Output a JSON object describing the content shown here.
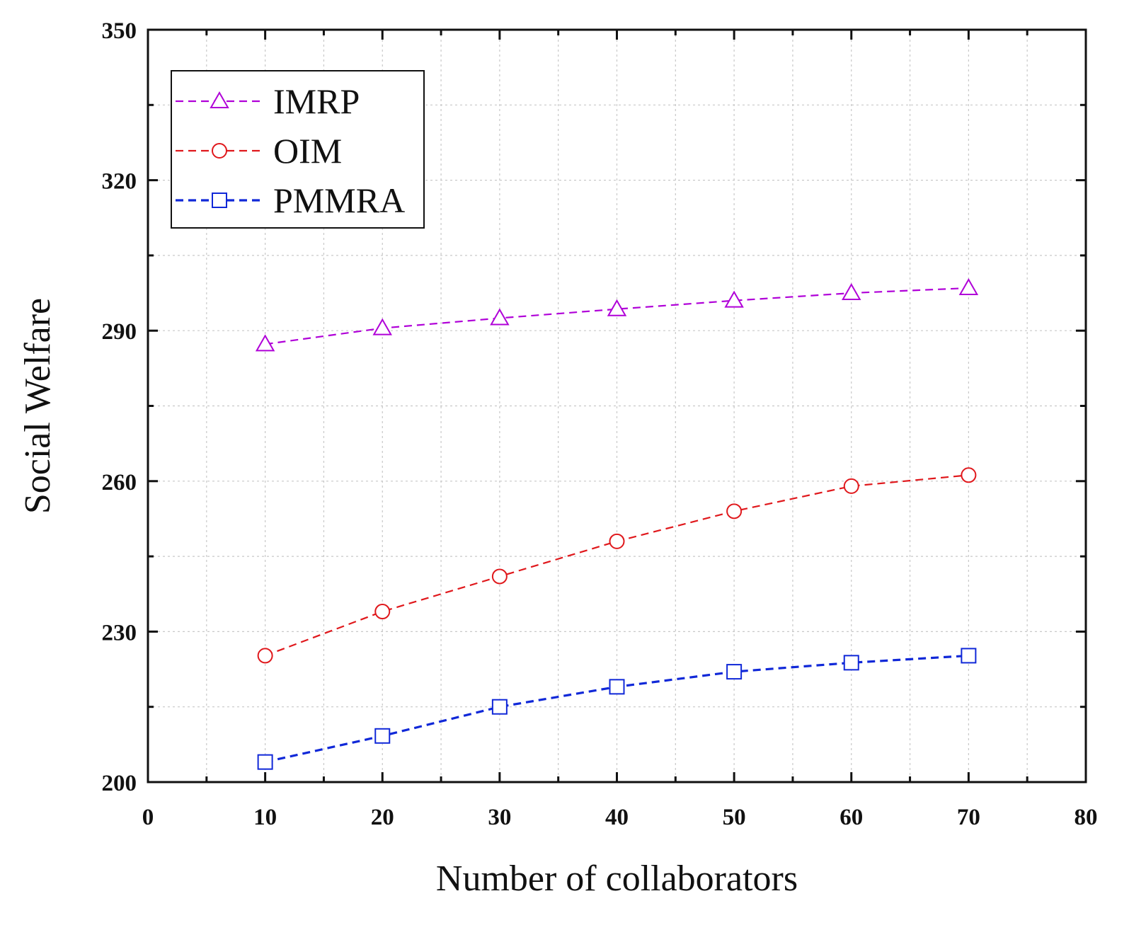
{
  "chart_data": {
    "type": "line",
    "title": "",
    "xlabel": "Number of collaborators",
    "ylabel": "Social Welfare",
    "xlim": [
      0,
      80
    ],
    "ylim": [
      200,
      350
    ],
    "xticks": [
      0,
      10,
      20,
      30,
      40,
      50,
      60,
      70,
      80
    ],
    "yticks": [
      200,
      230,
      260,
      290,
      320,
      350
    ],
    "xtick_labels": [
      "0",
      "10",
      "20",
      "30",
      "40",
      "50",
      "60",
      "70",
      "80"
    ],
    "ytick_labels": [
      "200",
      "230",
      "260",
      "290",
      "320",
      "350"
    ],
    "grid": true,
    "legend_position": "top-left",
    "x": [
      10,
      20,
      30,
      40,
      50,
      60,
      70
    ],
    "series": [
      {
        "name": "IMRP",
        "color": "#b000d8",
        "marker": "triangle",
        "values": [
          287.3,
          290.5,
          292.5,
          294.3,
          296.0,
          297.5,
          298.5
        ]
      },
      {
        "name": "OIM",
        "color": "#e0181c",
        "marker": "circle",
        "values": [
          225.2,
          234.0,
          241.0,
          248.0,
          254.0,
          259.0,
          261.2
        ]
      },
      {
        "name": "PMMRA",
        "color": "#1028d8",
        "marker": "square",
        "values": [
          204.0,
          209.2,
          215.0,
          219.0,
          222.0,
          223.8,
          225.2
        ]
      }
    ]
  }
}
